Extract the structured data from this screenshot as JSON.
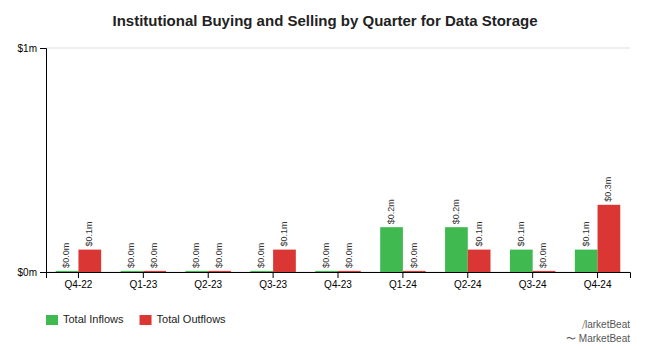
{
  "chart_data": {
    "type": "bar",
    "title": "Institutional Buying and Selling by Quarter for Data Storage",
    "categories": [
      "Q4-22",
      "Q1-23",
      "Q2-23",
      "Q3-23",
      "Q4-23",
      "Q1-24",
      "Q2-24",
      "Q3-24",
      "Q4-24"
    ],
    "series": [
      {
        "name": "Total Inflows",
        "color": "#3fb950",
        "values": [
          0.005,
          0.005,
          0.005,
          0.005,
          0.005,
          0.2,
          0.2,
          0.1,
          0.1
        ],
        "value_labels": [
          "$0.0m",
          "$0.0m",
          "$0.0m",
          "$0.0m",
          "$0.0m",
          "$0.2m",
          "$0.2m",
          "$0.1m",
          "$0.1m"
        ]
      },
      {
        "name": "Total Outflows",
        "color": "#da3633",
        "values": [
          0.1,
          0.005,
          0.005,
          0.1,
          0.005,
          0.005,
          0.1,
          0.005,
          0.3
        ],
        "value_labels": [
          "$0.1m",
          "$0.0m",
          "$0.0m",
          "$0.1m",
          "$0.0m",
          "$0.0m",
          "$0.1m",
          "$0.0m",
          "$0.3m"
        ]
      }
    ],
    "ylim": [
      0,
      1.0
    ],
    "yticks": [
      {
        "value": 0,
        "label": "$0m"
      },
      {
        "value": 1.0,
        "label": "$1m"
      }
    ],
    "grid": true,
    "legend": "lower left",
    "data_labels": true,
    "annotations": [
      "⁠⧸larketBeat",
      "〜 MarketBeat"
    ]
  }
}
